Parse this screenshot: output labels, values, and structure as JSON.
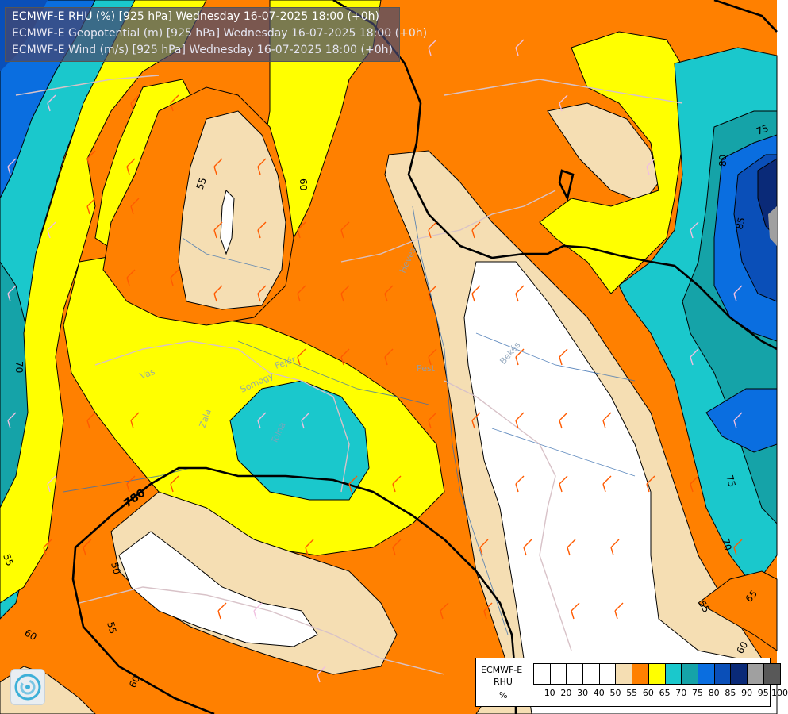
{
  "title_lines": [
    "ECMWF-E RHU (%) [925 hPa] Wednesday 16-07-2025 18:00 (+0h)",
    "ECMWF-E Geopotential (m) [925 hPa] Wednesday 16-07-2025 18:00 (+0h)",
    "ECMWF-E Wind (m/s) [925 hPa] Wednesday 16-07-2025 18:00 (+0h)"
  ],
  "legend": {
    "model": "ECMWF-E",
    "variable": "RHU",
    "unit": "%",
    "ticks": [
      "10",
      "20",
      "30",
      "40",
      "50",
      "55",
      "60",
      "65",
      "70",
      "75",
      "80",
      "85",
      "90",
      "95",
      "100"
    ],
    "colors": [
      "#ffffff",
      "#ffffff",
      "#ffffff",
      "#ffffff",
      "#ffffff",
      "#f5deb3",
      "#ff8000",
      "#ffff00",
      "#1ac8cc",
      "#15a3a8",
      "#0a6ee0",
      "#0a4fb8",
      "#0a2a78",
      "#a0a0a0",
      "#585858"
    ]
  },
  "contour_labels": {
    "geopotential": "780",
    "rhu": [
      "55",
      "60",
      "50",
      "55",
      "60",
      "55",
      "70",
      "60",
      "80",
      "75",
      "75",
      "85",
      "70",
      "65",
      "55",
      "60",
      "60",
      "55",
      "65"
    ]
  },
  "region_labels": [
    "Heves",
    "Békés",
    "Pest",
    "Vas",
    "Somogy",
    "Fejér",
    "Tolna",
    "Zala"
  ],
  "logo": "ecmwf-logo"
}
